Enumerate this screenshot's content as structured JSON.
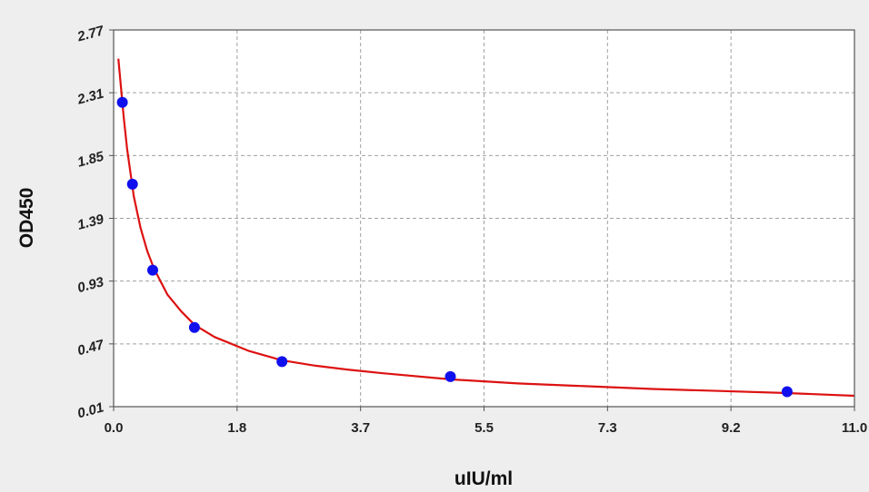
{
  "chart_data": {
    "type": "scatter",
    "title": "",
    "xlabel": "uIU/ml",
    "ylabel": "OD450",
    "xlim": [
      0.0,
      11.0
    ],
    "ylim": [
      0.01,
      2.77
    ],
    "x_ticks": [
      "0.0",
      "1.8",
      "3.7",
      "5.5",
      "7.3",
      "9.2",
      "11.0"
    ],
    "y_ticks": [
      "0.01",
      "0.47",
      "0.93",
      "1.39",
      "1.85",
      "2.31",
      "2.77"
    ],
    "grid": true,
    "legend": "none",
    "colors": {
      "points": "#1010ee",
      "curve": "#dd1111",
      "grid": "#a0a0a0",
      "background": "#ffffff",
      "frame": "#555555"
    },
    "series": [
      {
        "type": "scatter",
        "x": [
          0.13,
          0.28,
          0.58,
          1.2,
          2.5,
          5.0,
          10.0
        ],
        "y": [
          2.24,
          1.64,
          1.01,
          0.59,
          0.34,
          0.23,
          0.12
        ]
      },
      {
        "type": "line",
        "x": [
          0.07,
          0.1,
          0.15,
          0.2,
          0.3,
          0.4,
          0.5,
          0.6,
          0.8,
          1.0,
          1.2,
          1.5,
          2.0,
          2.5,
          3.0,
          3.5,
          4.0,
          5.0,
          6.0,
          7.0,
          8.0,
          9.0,
          10.0,
          11.0
        ],
        "y": [
          2.56,
          2.4,
          2.13,
          1.9,
          1.55,
          1.32,
          1.15,
          1.02,
          0.83,
          0.71,
          0.61,
          0.52,
          0.42,
          0.35,
          0.31,
          0.28,
          0.255,
          0.21,
          0.18,
          0.16,
          0.14,
          0.125,
          0.11,
          0.09
        ]
      }
    ]
  }
}
